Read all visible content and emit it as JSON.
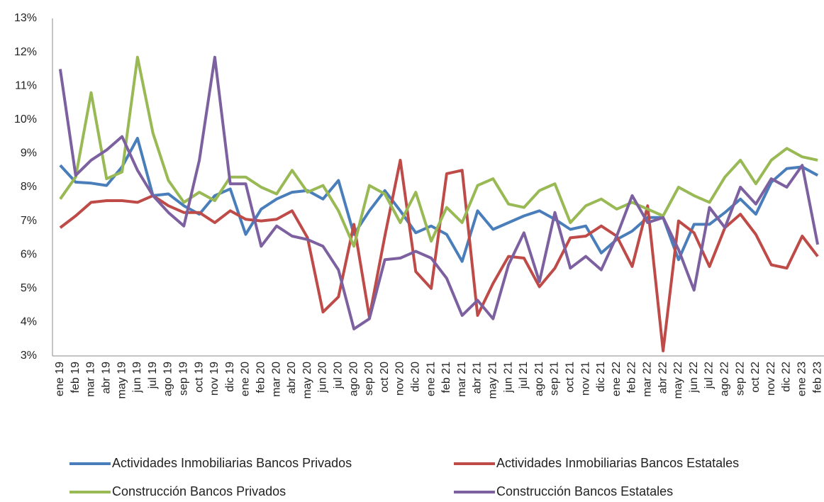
{
  "chart_data": {
    "type": "line",
    "categories": [
      "ene 19",
      "feb 19",
      "mar 19",
      "abr 19",
      "may 19",
      "jun 19",
      "jul 19",
      "ago 19",
      "sep 19",
      "oct 19",
      "nov 19",
      "dic 19",
      "ene 20",
      "feb 20",
      "mar 20",
      "abr 20",
      "may 20",
      "jun 20",
      "jul 20",
      "ago 20",
      "sep 20",
      "oct 20",
      "nov 20",
      "dic 20",
      "ene 21",
      "feb 21",
      "mar 21",
      "abr 21",
      "may 21",
      "jun 21",
      "jul 21",
      "ago 21",
      "sep 21",
      "oct 21",
      "nov 21",
      "dic 21",
      "ene 22",
      "feb 22",
      "mar 22",
      "abr 22",
      "may 22",
      "jun 22",
      "jul 22",
      "ago 22",
      "sep 22",
      "oct 22",
      "nov 22",
      "dic 22",
      "ene 23",
      "feb 23"
    ],
    "series": [
      {
        "name": "Actividades Inmobiliarias Bancos Privados",
        "color": "#4a7ebb",
        "values": [
          8.65,
          8.15,
          8.12,
          8.05,
          8.6,
          9.45,
          7.75,
          7.8,
          7.45,
          7.2,
          7.75,
          7.95,
          6.6,
          7.35,
          7.65,
          7.85,
          7.9,
          7.65,
          8.2,
          6.6,
          7.3,
          7.9,
          7.3,
          6.65,
          6.85,
          6.6,
          5.8,
          7.3,
          6.75,
          6.95,
          7.15,
          7.3,
          7.05,
          6.75,
          6.85,
          6.05,
          6.45,
          6.7,
          7.1,
          7.1,
          5.85,
          6.9,
          6.9,
          7.25,
          7.65,
          7.2,
          8.15,
          8.55,
          8.6,
          8.35
        ]
      },
      {
        "name": "Actividades Inmobiliarias Bancos Estatales",
        "color": "#be4b48",
        "values": [
          6.8,
          7.15,
          7.55,
          7.6,
          7.6,
          7.55,
          7.75,
          7.45,
          7.25,
          7.25,
          6.95,
          7.3,
          7.05,
          7.0,
          7.05,
          7.3,
          6.5,
          4.3,
          4.75,
          6.9,
          4.15,
          6.55,
          8.8,
          5.5,
          5.0,
          8.4,
          8.5,
          4.2,
          5.15,
          5.95,
          5.9,
          5.05,
          5.6,
          6.5,
          6.55,
          6.85,
          6.55,
          5.65,
          7.45,
          3.15,
          7.0,
          6.65,
          5.65,
          6.8,
          7.2,
          6.6,
          5.7,
          5.6,
          6.55,
          5.95
        ]
      },
      {
        "name": "Construcción Bancos Privados",
        "color": "#98b954",
        "values": [
          7.65,
          8.3,
          10.8,
          8.25,
          8.45,
          11.85,
          9.6,
          8.2,
          7.55,
          7.85,
          7.6,
          8.3,
          8.3,
          8.0,
          7.8,
          8.5,
          7.85,
          8.05,
          7.3,
          6.25,
          8.05,
          7.8,
          6.95,
          7.85,
          6.4,
          7.4,
          6.95,
          8.05,
          8.25,
          7.5,
          7.4,
          7.9,
          8.1,
          6.95,
          7.45,
          7.65,
          7.35,
          7.55,
          7.35,
          7.15,
          8.0,
          7.75,
          7.55,
          8.3,
          8.8,
          8.1,
          8.8,
          9.15,
          8.9,
          8.8
        ]
      },
      {
        "name": "Construcción Bancos Estatales",
        "color": "#7d60a0",
        "values": [
          11.5,
          8.35,
          8.8,
          9.1,
          9.5,
          8.5,
          7.75,
          7.25,
          6.85,
          8.8,
          11.85,
          8.1,
          8.1,
          6.25,
          6.85,
          6.55,
          6.45,
          6.25,
          5.55,
          3.8,
          4.1,
          5.85,
          5.9,
          6.1,
          5.9,
          5.3,
          4.2,
          4.65,
          4.1,
          5.7,
          6.65,
          5.2,
          7.25,
          5.6,
          5.95,
          5.55,
          6.55,
          7.75,
          6.95,
          7.1,
          6.15,
          4.95,
          7.4,
          6.8,
          8.0,
          7.5,
          8.25,
          8.0,
          8.65,
          6.3
        ]
      }
    ],
    "ylim": [
      3,
      13
    ],
    "yticks": [
      {
        "value": 3,
        "label": "3%"
      },
      {
        "value": 4,
        "label": "4%"
      },
      {
        "value": 5,
        "label": "5%"
      },
      {
        "value": 6,
        "label": "6%"
      },
      {
        "value": 7,
        "label": "7%"
      },
      {
        "value": 8,
        "label": "8%"
      },
      {
        "value": 9,
        "label": "9%"
      },
      {
        "value": 10,
        "label": "10%"
      },
      {
        "value": 11,
        "label": "11%"
      },
      {
        "value": 12,
        "label": "12%"
      },
      {
        "value": 13,
        "label": "13%"
      }
    ],
    "grid": false
  }
}
